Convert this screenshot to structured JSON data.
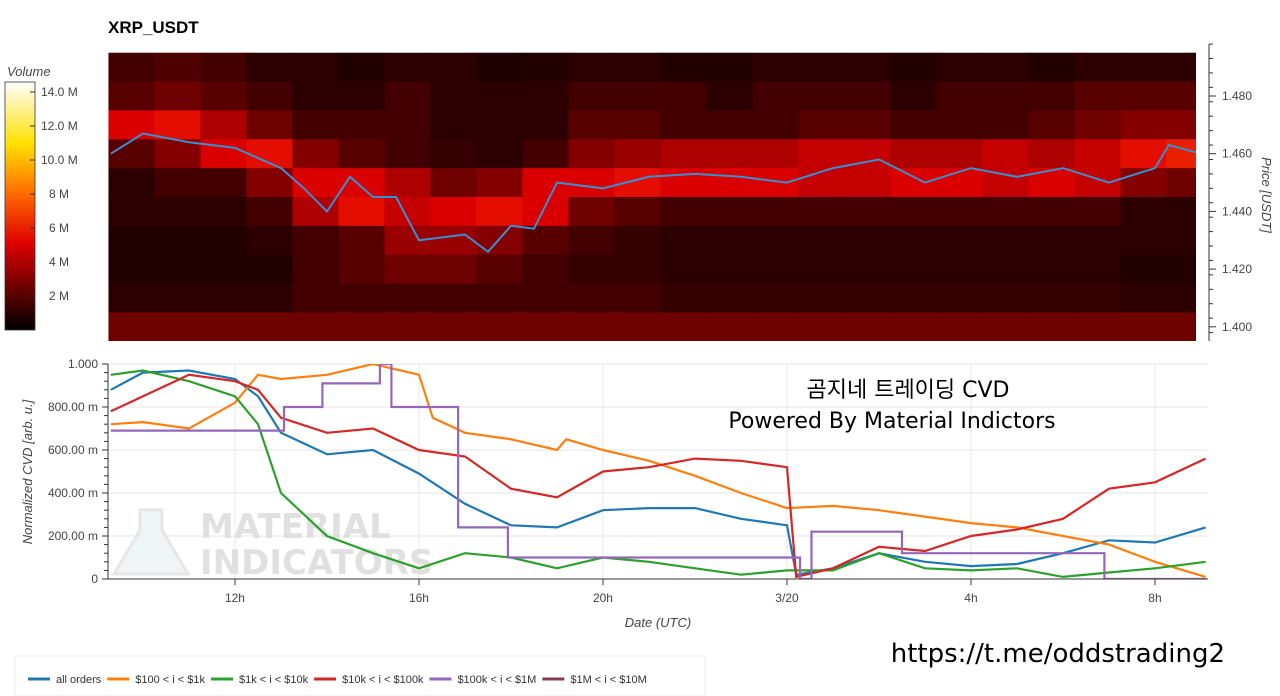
{
  "chart_data": [
    {
      "type": "heatmap",
      "title": "XRP_USDT",
      "ylabel": "Price [USDT]",
      "ylim": [
        1.395,
        1.498
      ],
      "yticks": [
        "1.400",
        "1.420",
        "1.440",
        "1.460",
        "1.480"
      ],
      "colorbar": {
        "label": "Volume",
        "range_M": [
          0,
          14.6
        ],
        "ticks": [
          "2 M",
          "4 M",
          "6 M",
          "8 M",
          "10.0 M",
          "12.0 M",
          "14.0 M"
        ],
        "colors": [
          "#000000",
          "#e00000",
          "#ff6a00",
          "#ffe000",
          "#ffffff"
        ]
      },
      "time_bins_start": [
        "3/19 09:15",
        "3/19 10:15",
        "3/19 11:15",
        "3/19 12:15",
        "3/19 13:15",
        "3/19 14:15",
        "3/19 15:15",
        "3/19 16:15",
        "3/19 17:15",
        "3/19 18:15",
        "3/19 19:15",
        "3/19 20:15",
        "3/19 21:15",
        "3/19 22:15",
        "3/19 23:15",
        "3/20 00:15",
        "3/20 01:15",
        "3/20 02:15",
        "3/20 03:15",
        "3/20 04:15",
        "3/20 05:15",
        "3/20 06:15",
        "3/20 07:15",
        "3/20 08:15"
      ],
      "price_bins": [
        1.49,
        1.48,
        1.47,
        1.46,
        1.45,
        1.44,
        1.43,
        1.42,
        1.41,
        1.4
      ],
      "volume_M": [
        [
          1.5,
          1.8,
          1.5,
          1,
          1,
          0.8,
          1,
          1,
          0.7,
          0.8,
          1,
          1,
          0.8,
          0.8,
          1,
          1,
          1,
          0.8,
          1,
          1,
          0.8,
          1,
          1,
          1
        ],
        [
          2,
          2.5,
          2,
          1.5,
          1,
          1,
          1.5,
          1,
          1,
          1,
          1.5,
          1.5,
          1.5,
          1,
          1.5,
          1.5,
          1.5,
          1,
          1.5,
          1.5,
          1.5,
          2,
          2,
          2
        ],
        [
          5,
          5.5,
          4,
          2.5,
          1.5,
          1.5,
          1.5,
          1,
          1,
          1,
          2,
          2,
          1.5,
          1.5,
          1.5,
          2,
          2,
          1.5,
          1.5,
          1.5,
          2,
          2.5,
          3,
          3
        ],
        [
          2,
          3,
          5,
          5.5,
          3,
          2,
          1.5,
          1.2,
          1,
          1.5,
          3,
          3.5,
          4,
          4,
          4,
          4.5,
          4.5,
          4,
          4,
          4.5,
          4,
          4.5,
          5.5,
          6
        ],
        [
          1,
          1.5,
          1.5,
          3,
          5,
          5,
          4,
          2.5,
          3,
          5,
          5,
          5.5,
          5,
          5,
          5,
          4.5,
          4.5,
          5,
          5,
          4.5,
          5,
          4.5,
          3,
          2.5
        ],
        [
          1,
          1,
          1,
          1.5,
          4,
          5.5,
          4.5,
          5,
          5.5,
          5,
          2.5,
          2,
          1.5,
          1.5,
          1.5,
          1.5,
          1.5,
          1.5,
          1.5,
          1.5,
          1.5,
          1.5,
          1,
          1
        ],
        [
          0.8,
          0.8,
          0.8,
          1,
          1.5,
          2,
          3.5,
          3.5,
          3,
          2,
          1.5,
          1.2,
          1,
          1,
          1,
          1,
          1,
          1,
          1,
          1,
          1,
          1,
          1,
          1
        ],
        [
          0.8,
          0.8,
          0.8,
          0.8,
          1.5,
          2,
          2.5,
          2.5,
          2,
          1.5,
          1.2,
          1.2,
          1,
          1,
          1,
          1,
          1,
          1,
          1,
          1,
          1,
          1,
          0.8,
          0.8
        ],
        [
          1,
          1,
          1,
          1,
          1.5,
          1.5,
          1.5,
          1.5,
          1.5,
          1.5,
          1.5,
          1.5,
          1.2,
          1.2,
          1.2,
          1.2,
          1.2,
          1.2,
          1.2,
          1.2,
          1.2,
          1.2,
          1,
          1
        ],
        [
          2.5,
          2.5,
          2.5,
          2.5,
          2.5,
          2.5,
          2.5,
          2.5,
          2.5,
          2.5,
          2.5,
          2.5,
          2.5,
          2.5,
          2.5,
          2.5,
          2.5,
          2.5,
          2.5,
          2.5,
          2.5,
          2.5,
          2.5,
          2.5
        ]
      ],
      "price_line": {
        "color": "#3a8fd0",
        "points": [
          [
            "3/19 09:18",
            1.46
          ],
          [
            "3/19 10:00",
            1.467
          ],
          [
            "3/19 11:00",
            1.464
          ],
          [
            "3/19 12:00",
            1.462
          ],
          [
            "3/19 13:00",
            1.455
          ],
          [
            "3/19 13:30",
            1.448
          ],
          [
            "3/19 14:00",
            1.44
          ],
          [
            "3/19 14:30",
            1.452
          ],
          [
            "3/19 15:00",
            1.445
          ],
          [
            "3/19 15:30",
            1.445
          ],
          [
            "3/19 16:00",
            1.43
          ],
          [
            "3/19 17:00",
            1.432
          ],
          [
            "3/19 17:30",
            1.426
          ],
          [
            "3/19 18:00",
            1.435
          ],
          [
            "3/19 18:30",
            1.434
          ],
          [
            "3/19 19:00",
            1.45
          ],
          [
            "3/19 20:00",
            1.448
          ],
          [
            "3/19 21:00",
            1.452
          ],
          [
            "3/19 22:00",
            1.453
          ],
          [
            "3/19 23:00",
            1.452
          ],
          [
            "3/20 00:00",
            1.45
          ],
          [
            "3/20 01:00",
            1.455
          ],
          [
            "3/20 02:00",
            1.458
          ],
          [
            "3/20 03:00",
            1.45
          ],
          [
            "3/20 04:00",
            1.455
          ],
          [
            "3/20 05:00",
            1.452
          ],
          [
            "3/20 06:00",
            1.455
          ],
          [
            "3/20 07:00",
            1.45
          ],
          [
            "3/20 08:00",
            1.455
          ],
          [
            "3/20 08:18",
            1.463
          ],
          [
            "3/20 09:00",
            1.46
          ],
          [
            "3/20 09:10",
            1.457
          ]
        ]
      }
    },
    {
      "type": "line",
      "xlabel": "Date (UTC)",
      "ylabel": "Normalized CVD [arb. u.]",
      "xlim": [
        "3/19 09:15",
        "3/20 09:10"
      ],
      "ylim": [
        0,
        1.0
      ],
      "grid": true,
      "xticks": [
        {
          "t": "3/19 12:00",
          "label": "12h"
        },
        {
          "t": "3/19 16:00",
          "label": "16h"
        },
        {
          "t": "3/19 20:00",
          "label": "20h"
        },
        {
          "t": "3/20 00:00",
          "label": "3/20"
        },
        {
          "t": "3/20 04:00",
          "label": "4h"
        },
        {
          "t": "3/20 08:00",
          "label": "8h"
        }
      ],
      "yticks": [
        {
          "v": 0,
          "label": "0"
        },
        {
          "v": 0.2,
          "label": "200.00 m"
        },
        {
          "v": 0.4,
          "label": "400.00 m"
        },
        {
          "v": 0.6,
          "label": "600.00 m"
        },
        {
          "v": 0.8,
          "label": "800.00 m"
        },
        {
          "v": 1.0,
          "label": "1.000"
        }
      ],
      "legend_position": "bottom",
      "series": [
        {
          "name": "all orders",
          "color": "#1f77b4",
          "step": false,
          "points": [
            [
              "3/19 09:18",
              0.88
            ],
            [
              "3/19 10:00",
              0.96
            ],
            [
              "3/19 11:00",
              0.97
            ],
            [
              "3/19 12:00",
              0.93
            ],
            [
              "3/19 12:30",
              0.85
            ],
            [
              "3/19 13:00",
              0.68
            ],
            [
              "3/19 14:00",
              0.58
            ],
            [
              "3/19 15:00",
              0.6
            ],
            [
              "3/19 16:00",
              0.49
            ],
            [
              "3/19 17:00",
              0.35
            ],
            [
              "3/19 18:00",
              0.25
            ],
            [
              "3/19 19:00",
              0.24
            ],
            [
              "3/19 20:00",
              0.32
            ],
            [
              "3/19 21:00",
              0.33
            ],
            [
              "3/19 22:00",
              0.33
            ],
            [
              "3/19 23:00",
              0.28
            ],
            [
              "3/20 00:00",
              0.25
            ],
            [
              "3/20 00:12",
              0.02
            ],
            [
              "3/20 01:00",
              0.05
            ],
            [
              "3/20 02:00",
              0.12
            ],
            [
              "3/20 03:00",
              0.08
            ],
            [
              "3/20 04:00",
              0.06
            ],
            [
              "3/20 05:00",
              0.07
            ],
            [
              "3/20 06:00",
              0.12
            ],
            [
              "3/20 07:00",
              0.18
            ],
            [
              "3/20 08:00",
              0.17
            ],
            [
              "3/20 09:06",
              0.24
            ]
          ]
        },
        {
          "name": "$100 < i < $1k",
          "color": "#ff7f0e",
          "step": false,
          "points": [
            [
              "3/19 09:18",
              0.72
            ],
            [
              "3/19 10:00",
              0.73
            ],
            [
              "3/19 11:00",
              0.7
            ],
            [
              "3/19 12:00",
              0.82
            ],
            [
              "3/19 12:30",
              0.95
            ],
            [
              "3/19 13:00",
              0.93
            ],
            [
              "3/19 14:00",
              0.95
            ],
            [
              "3/19 15:00",
              1.0
            ],
            [
              "3/19 16:00",
              0.95
            ],
            [
              "3/19 16:18",
              0.75
            ],
            [
              "3/19 17:00",
              0.68
            ],
            [
              "3/19 18:00",
              0.65
            ],
            [
              "3/19 19:00",
              0.6
            ],
            [
              "3/19 19:12",
              0.65
            ],
            [
              "3/19 20:00",
              0.6
            ],
            [
              "3/19 21:00",
              0.55
            ],
            [
              "3/19 22:00",
              0.48
            ],
            [
              "3/19 23:00",
              0.4
            ],
            [
              "3/20 00:00",
              0.33
            ],
            [
              "3/20 01:00",
              0.34
            ],
            [
              "3/20 02:00",
              0.32
            ],
            [
              "3/20 03:00",
              0.29
            ],
            [
              "3/20 04:00",
              0.26
            ],
            [
              "3/20 05:00",
              0.24
            ],
            [
              "3/20 06:00",
              0.2
            ],
            [
              "3/20 07:00",
              0.16
            ],
            [
              "3/20 08:00",
              0.08
            ],
            [
              "3/20 09:06",
              0.01
            ]
          ]
        },
        {
          "name": "$1k < i < $10k",
          "color": "#2ca02c",
          "step": false,
          "points": [
            [
              "3/19 09:18",
              0.95
            ],
            [
              "3/19 10:00",
              0.97
            ],
            [
              "3/19 11:00",
              0.92
            ],
            [
              "3/19 12:00",
              0.85
            ],
            [
              "3/19 12:30",
              0.72
            ],
            [
              "3/19 13:00",
              0.4
            ],
            [
              "3/19 14:00",
              0.2
            ],
            [
              "3/19 15:00",
              0.12
            ],
            [
              "3/19 16:00",
              0.05
            ],
            [
              "3/19 17:00",
              0.12
            ],
            [
              "3/19 18:00",
              0.1
            ],
            [
              "3/19 19:00",
              0.05
            ],
            [
              "3/19 20:00",
              0.1
            ],
            [
              "3/19 21:00",
              0.08
            ],
            [
              "3/19 22:00",
              0.05
            ],
            [
              "3/19 23:00",
              0.02
            ],
            [
              "3/20 00:00",
              0.04
            ],
            [
              "3/20 01:00",
              0.04
            ],
            [
              "3/20 02:00",
              0.12
            ],
            [
              "3/20 03:00",
              0.05
            ],
            [
              "3/20 04:00",
              0.04
            ],
            [
              "3/20 05:00",
              0.05
            ],
            [
              "3/20 06:00",
              0.01
            ],
            [
              "3/20 07:00",
              0.03
            ],
            [
              "3/20 08:00",
              0.05
            ],
            [
              "3/20 09:06",
              0.08
            ]
          ]
        },
        {
          "name": "$10k < i < $100k",
          "color": "#d62728",
          "step": false,
          "points": [
            [
              "3/19 09:18",
              0.78
            ],
            [
              "3/19 10:00",
              0.85
            ],
            [
              "3/19 11:00",
              0.95
            ],
            [
              "3/19 12:00",
              0.92
            ],
            [
              "3/19 12:30",
              0.88
            ],
            [
              "3/19 13:00",
              0.75
            ],
            [
              "3/19 14:00",
              0.68
            ],
            [
              "3/19 15:00",
              0.7
            ],
            [
              "3/19 16:00",
              0.6
            ],
            [
              "3/19 17:00",
              0.57
            ],
            [
              "3/19 18:00",
              0.42
            ],
            [
              "3/19 19:00",
              0.38
            ],
            [
              "3/19 20:00",
              0.5
            ],
            [
              "3/19 21:00",
              0.52
            ],
            [
              "3/19 22:00",
              0.56
            ],
            [
              "3/19 23:00",
              0.55
            ],
            [
              "3/20 00:00",
              0.52
            ],
            [
              "3/20 00:12",
              0.01
            ],
            [
              "3/20 01:00",
              0.05
            ],
            [
              "3/20 02:00",
              0.15
            ],
            [
              "3/20 03:00",
              0.13
            ],
            [
              "3/20 04:00",
              0.2
            ],
            [
              "3/20 05:00",
              0.23
            ],
            [
              "3/20 06:00",
              0.28
            ],
            [
              "3/20 07:00",
              0.42
            ],
            [
              "3/20 08:00",
              0.45
            ],
            [
              "3/20 09:06",
              0.56
            ]
          ]
        },
        {
          "name": "$100k < i < $1M",
          "color": "#9467bd",
          "step": true,
          "points": [
            [
              "3/19 09:18",
              0.69
            ],
            [
              "3/19 13:04",
              0.8
            ],
            [
              "3/19 13:54",
              0.91
            ],
            [
              "3/19 15:09",
              1.0
            ],
            [
              "3/19 15:24",
              0.8
            ],
            [
              "3/19 16:51",
              0.24
            ],
            [
              "3/19 17:56",
              0.1
            ],
            [
              "3/20 00:17",
              0.0
            ],
            [
              "3/20 00:32",
              0.22
            ],
            [
              "3/20 02:30",
              0.12
            ],
            [
              "3/20 06:54",
              0.0
            ],
            [
              "3/20 09:06",
              0.0
            ]
          ]
        },
        {
          "name": "$1M < i < $10M",
          "color": "#8c3a4a",
          "step": false,
          "points": []
        }
      ]
    }
  ],
  "watermark": {
    "line1": "곰지네 트레이딩 CVD",
    "line2": "Powered By Material Indictors"
  },
  "logo": {
    "line1": "MATERIAL",
    "line2": "INDICATORS"
  },
  "footer_url": "https://t.me/oddstrading2"
}
